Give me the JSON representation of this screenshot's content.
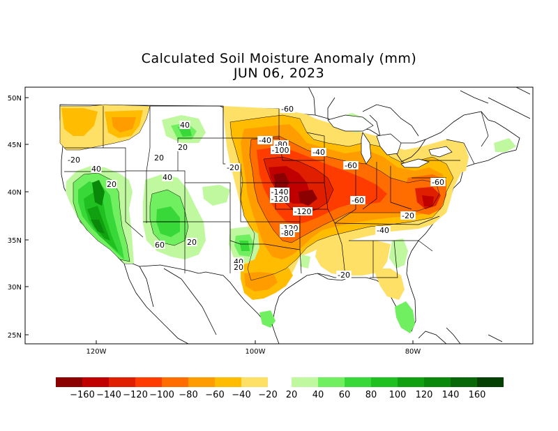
{
  "title": {
    "line1": "Calculated Soil Moisture Anomaly (mm)",
    "line2": "JUN 06, 2023"
  },
  "axes": {
    "lat_ticks": [
      "50N",
      "45N",
      "40N",
      "35N",
      "30N",
      "25N"
    ],
    "lon_ticks": [
      "120W",
      "100W",
      "80W"
    ]
  },
  "colorbar": {
    "dry_colors": [
      "#8b0000",
      "#c00000",
      "#e01e00",
      "#ff3c00",
      "#ff6c00",
      "#ff9c00",
      "#ffbc00",
      "#ffe066"
    ],
    "wet_colors": [
      "#c0f8a0",
      "#70f060",
      "#38d838",
      "#20c020",
      "#10a010",
      "#0a880a",
      "#066806",
      "#044004"
    ],
    "labels": [
      "-160",
      "-140",
      "-120",
      "-100",
      "-80",
      "-60",
      "-40",
      "-20",
      "20",
      "40",
      "60",
      "80",
      "100",
      "120",
      "140",
      "160"
    ]
  },
  "contour_labels": [
    "-20",
    "-60",
    "-40",
    "-80",
    "-100",
    "-40",
    "-20",
    "-60",
    "-140",
    "-120",
    "-60",
    "-120",
    "-60",
    "-20",
    "-40",
    "-120",
    "-80",
    "-20",
    "40",
    "20",
    "20",
    "40",
    "20",
    "40",
    "60",
    "20",
    "40",
    "20"
  ]
}
